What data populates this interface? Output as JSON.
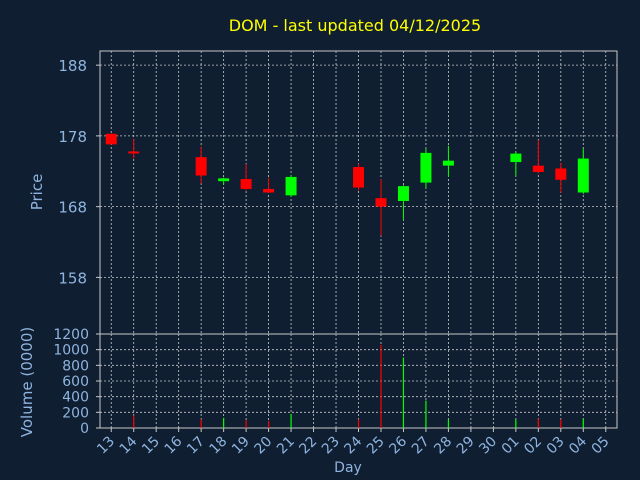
{
  "colors": {
    "background": "#0f1e30",
    "title": "#ffff00",
    "axis_text": "#8fb4e0",
    "grid": "#c8c8c8",
    "frame": "#c8c8c8",
    "up": "#00ff00",
    "down": "#ff0000"
  },
  "chart_data": [
    {
      "type": "candlestick",
      "title": "DOM - last updated 04/12/2025",
      "ylabel": "Price",
      "ylim": [
        150,
        190
      ],
      "yticks": [
        158,
        168,
        178,
        188
      ],
      "grid": true,
      "x_ticks": [
        "13",
        "14",
        "15",
        "16",
        "17",
        "18",
        "19",
        "20",
        "21",
        "22",
        "23",
        "24",
        "25",
        "26",
        "27",
        "28",
        "29",
        "30",
        "01",
        "02",
        "03",
        "04",
        "05"
      ],
      "candles": [
        {
          "day": "13",
          "open": 178.3,
          "close": 176.8,
          "high": 178.3,
          "low": 176.8
        },
        {
          "day": "14",
          "open": 175.8,
          "close": 175.6,
          "high": 177.6,
          "low": 174.8
        },
        {
          "day": "17",
          "open": 175.0,
          "close": 172.4,
          "high": 176.5,
          "low": 171.3
        },
        {
          "day": "18",
          "open": 171.6,
          "close": 172.0,
          "high": 172.1,
          "low": 171.1
        },
        {
          "day": "19",
          "open": 171.9,
          "close": 170.5,
          "high": 174.0,
          "low": 170.3
        },
        {
          "day": "20",
          "open": 170.5,
          "close": 170.0,
          "high": 172.1,
          "low": 169.9
        },
        {
          "day": "21",
          "open": 169.6,
          "close": 172.2,
          "high": 172.5,
          "low": 169.4
        },
        {
          "day": "24",
          "open": 173.6,
          "close": 170.7,
          "high": 174.1,
          "low": 170.3
        },
        {
          "day": "25",
          "open": 169.2,
          "close": 168.0,
          "high": 171.9,
          "low": 163.9
        },
        {
          "day": "26",
          "open": 168.8,
          "close": 170.9,
          "high": 171.0,
          "low": 166.1
        },
        {
          "day": "27",
          "open": 171.4,
          "close": 175.6,
          "high": 176.2,
          "low": 170.6
        },
        {
          "day": "28",
          "open": 173.8,
          "close": 174.5,
          "high": 176.6,
          "low": 172.2
        },
        {
          "day": "01",
          "open": 174.3,
          "close": 175.5,
          "high": 175.7,
          "low": 172.4
        },
        {
          "day": "02",
          "open": 173.8,
          "close": 172.9,
          "high": 177.4,
          "low": 172.7
        },
        {
          "day": "03",
          "open": 173.4,
          "close": 171.8,
          "high": 174.2,
          "low": 170.0
        },
        {
          "day": "04",
          "open": 170.0,
          "close": 174.8,
          "high": 176.2,
          "low": 169.8
        }
      ]
    },
    {
      "type": "bar",
      "ylabel": "Volume (0000)",
      "xlabel": "Day",
      "ylim": [
        0,
        1200
      ],
      "yticks": [
        0,
        200,
        400,
        600,
        800,
        1000,
        1200
      ],
      "grid": true,
      "bars": [
        {
          "day": "14",
          "value": 160,
          "direction": "down"
        },
        {
          "day": "17",
          "value": 110,
          "direction": "down"
        },
        {
          "day": "18",
          "value": 130,
          "direction": "up"
        },
        {
          "day": "19",
          "value": 100,
          "direction": "down"
        },
        {
          "day": "20",
          "value": 90,
          "direction": "down"
        },
        {
          "day": "21",
          "value": 180,
          "direction": "up"
        },
        {
          "day": "24",
          "value": 110,
          "direction": "down"
        },
        {
          "day": "25",
          "value": 1060,
          "direction": "down"
        },
        {
          "day": "26",
          "value": 900,
          "direction": "up"
        },
        {
          "day": "27",
          "value": 350,
          "direction": "up"
        },
        {
          "day": "28",
          "value": 110,
          "direction": "up"
        },
        {
          "day": "01",
          "value": 110,
          "direction": "up"
        },
        {
          "day": "02",
          "value": 120,
          "direction": "down"
        },
        {
          "day": "03",
          "value": 110,
          "direction": "down"
        },
        {
          "day": "04",
          "value": 120,
          "direction": "up"
        }
      ]
    }
  ]
}
